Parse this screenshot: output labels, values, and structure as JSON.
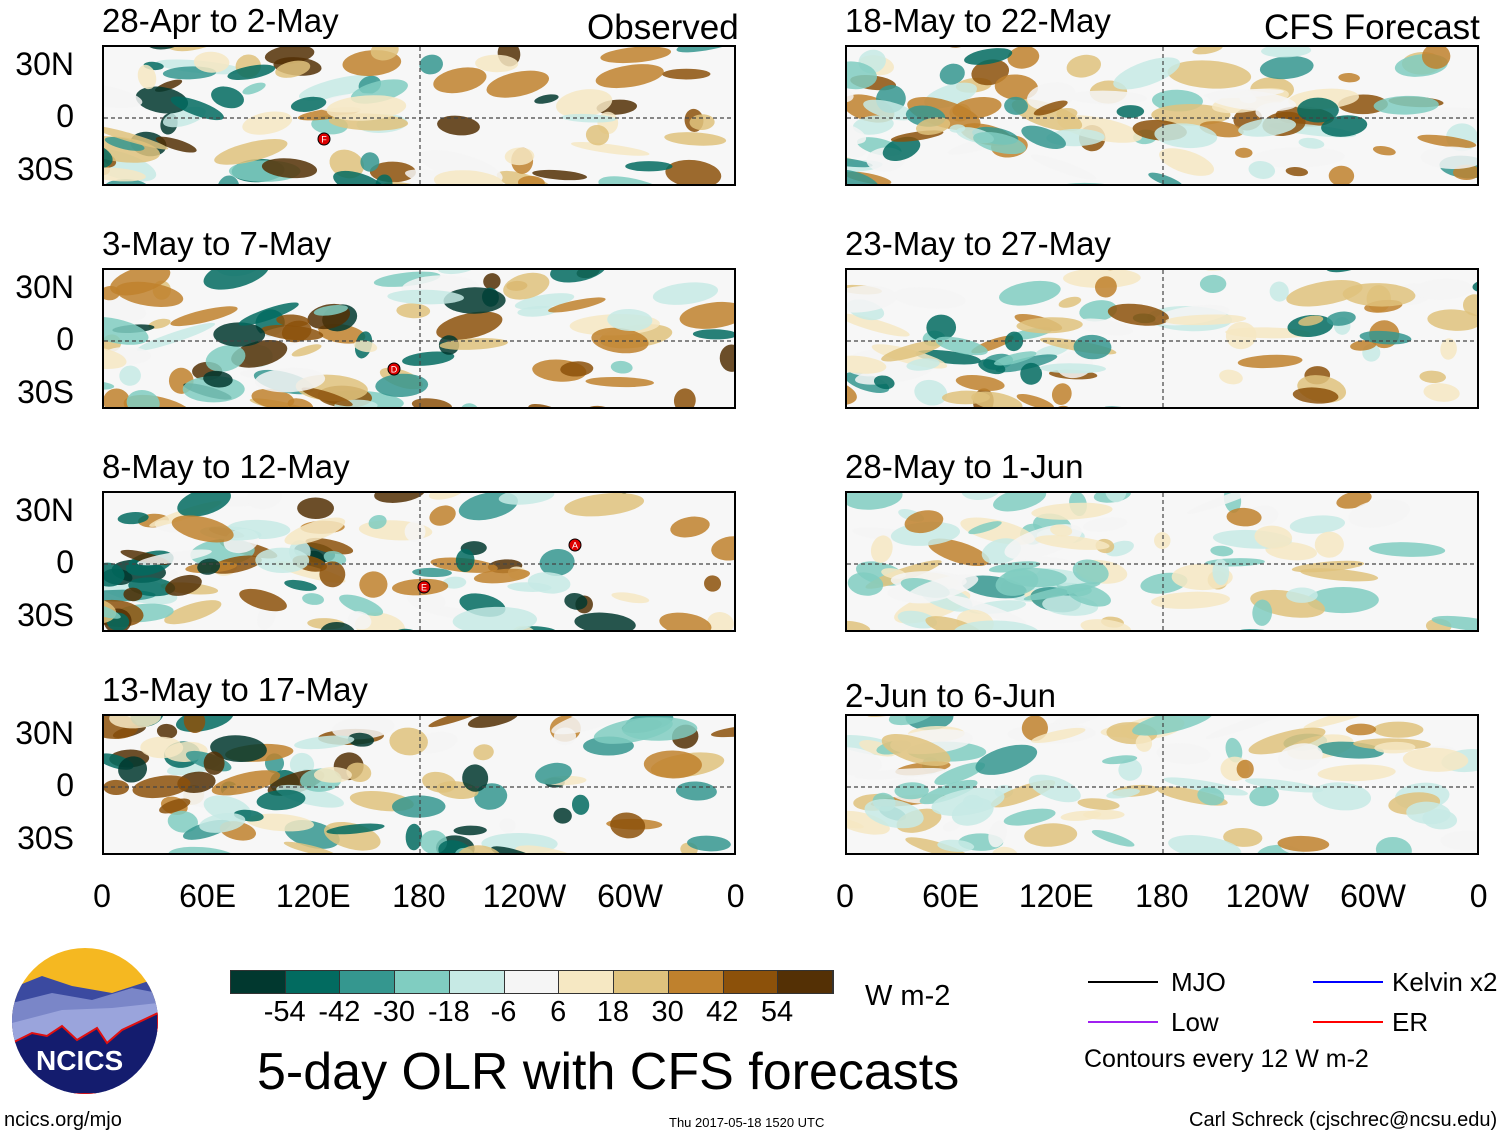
{
  "figure": {
    "title": "5-day OLR with CFS forecasts",
    "left_column_label": "Observed",
    "right_column_label": "CFS Forecast",
    "website": "ncics.org/mjo",
    "timestamp": "Thu 2017-05-18 1520 UTC",
    "credit": "Carl Schreck (cjschrec@ncsu.edu)",
    "logo_text": "NCICS"
  },
  "panels": [
    {
      "title": "28-Apr to 2-May",
      "type": "observed",
      "storms": [
        "F"
      ]
    },
    {
      "title": "3-May to 7-May",
      "type": "observed",
      "storms": [
        "D"
      ]
    },
    {
      "title": "8-May to 12-May",
      "type": "observed",
      "storms": [
        "A",
        "E"
      ]
    },
    {
      "title": "13-May to 17-May",
      "type": "observed",
      "storms": []
    },
    {
      "title": "18-May to 22-May",
      "type": "forecast",
      "storms": []
    },
    {
      "title": "23-May to 27-May",
      "type": "forecast",
      "storms": []
    },
    {
      "title": "28-May to 1-Jun",
      "type": "forecast",
      "storms": []
    },
    {
      "title": "2-Jun to 6-Jun",
      "type": "forecast",
      "storms": []
    }
  ],
  "axes": {
    "lat_labels": [
      "30N",
      "0",
      "30S"
    ],
    "lon_labels": [
      "0",
      "60E",
      "120E",
      "180",
      "120W",
      "60W",
      "0"
    ]
  },
  "colorbar": {
    "unit": "W m-2",
    "labels": [
      "-54",
      "-42",
      "-30",
      "-18",
      "-6",
      "6",
      "18",
      "30",
      "42",
      "54"
    ],
    "colors": [
      "#01382f",
      "#026b60",
      "#35978f",
      "#80cdc1",
      "#c7eae5",
      "#f5f5f5",
      "#f6e8c3",
      "#dfc27d",
      "#bf812d",
      "#8c510a",
      "#543005"
    ]
  },
  "legend": {
    "items": [
      {
        "label": "MJO",
        "color": "#000000"
      },
      {
        "label": "Kelvin x2",
        "color": "#0000ff"
      },
      {
        "label": "Low",
        "color": "#a020f0"
      },
      {
        "label": "ER",
        "color": "#ff0000"
      }
    ],
    "note": "Contours every 12 W m-2"
  }
}
